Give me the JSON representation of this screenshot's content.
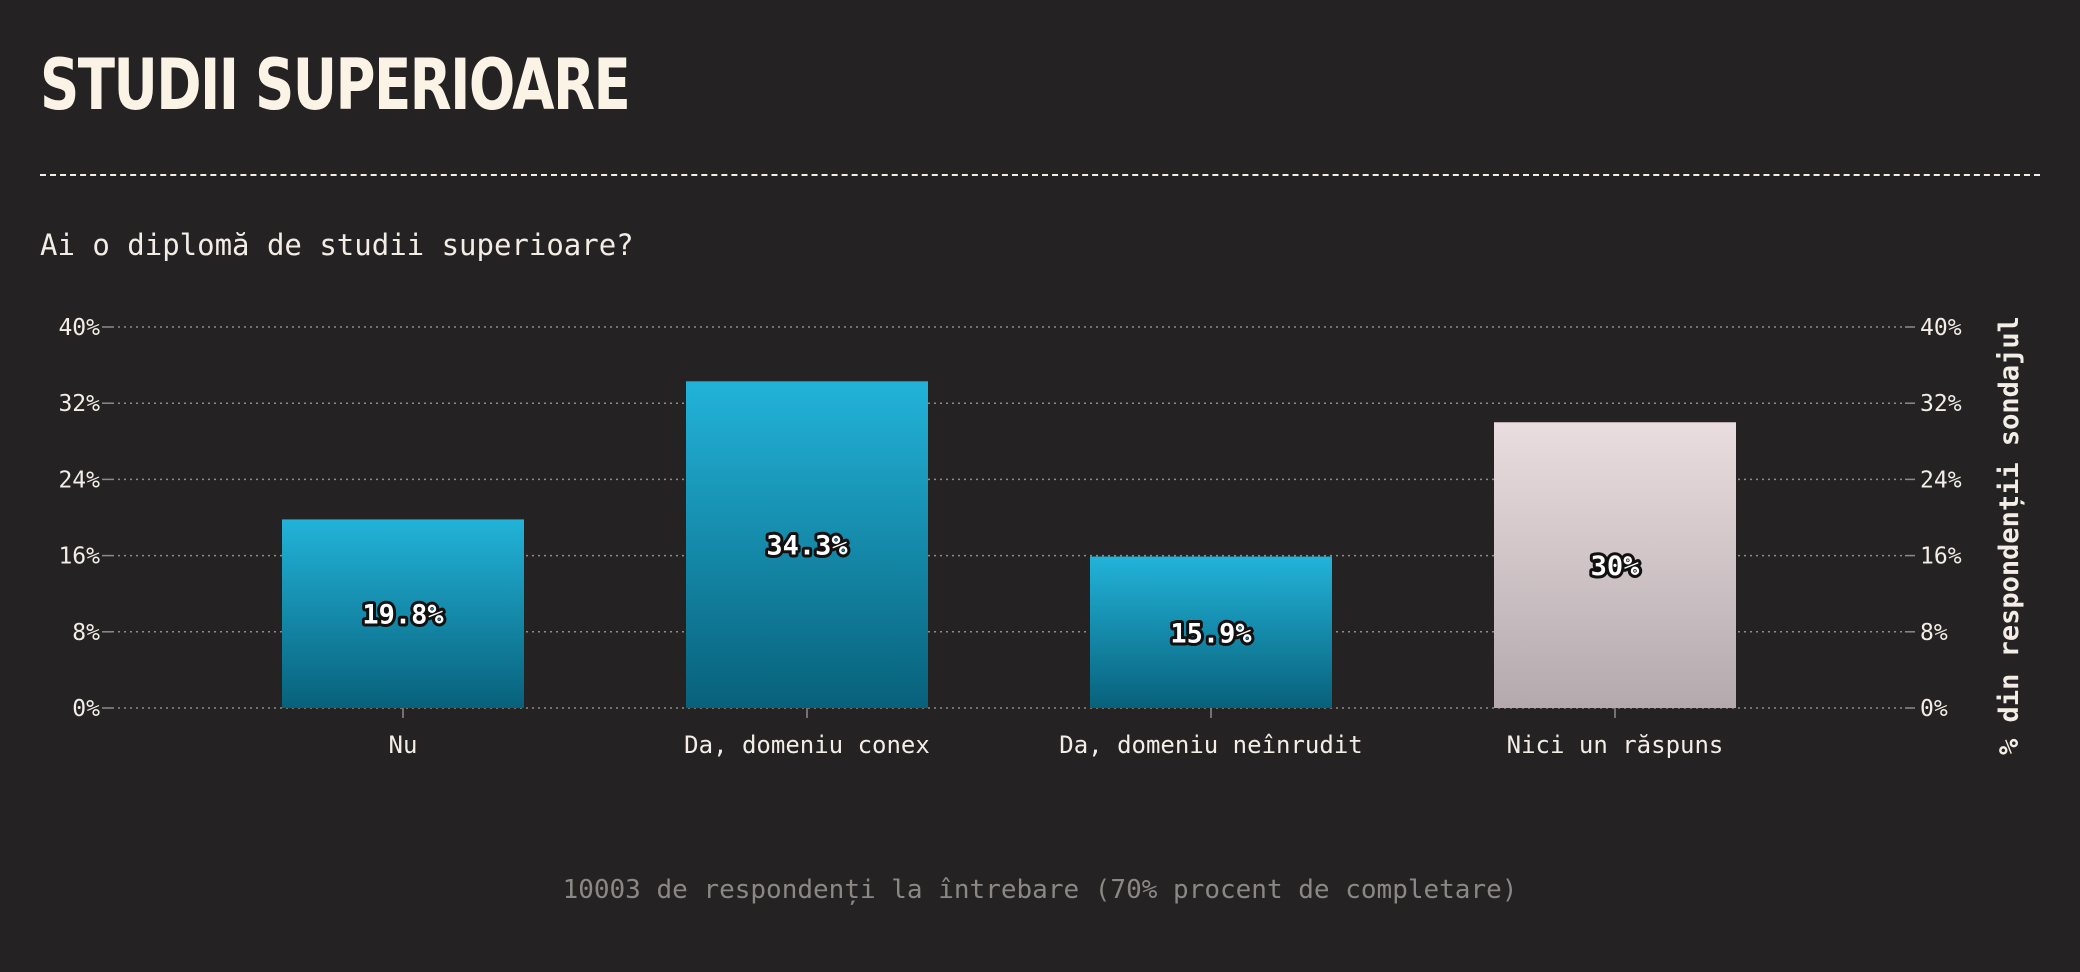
{
  "header": {
    "title": "STUDII SUPERIOARE"
  },
  "question": "Ai o diplomă de studii superioare?",
  "footer": "10003 de respondenți la întrebare (70% procent de completare)",
  "colors": {
    "background": "#252223",
    "bar_primary_top": "#22b3d9",
    "bar_primary_bottom": "#08617b",
    "bar_other_top": "#eadde0",
    "bar_other_bottom": "#b4aaad",
    "text": "#f3ede6",
    "muted": "#8c8784"
  },
  "chart_data": {
    "type": "bar",
    "categories": [
      "Nu",
      "Da, domeniu conex",
      "Da, domeniu neînrudit",
      "Nici un răspuns"
    ],
    "values": [
      19.8,
      34.3,
      15.9,
      30
    ],
    "data_labels": [
      "19.8%",
      "34.3%",
      "15.9%",
      "30%"
    ],
    "bar_styles": [
      "primary",
      "primary",
      "primary",
      "other"
    ],
    "ylim": [
      0,
      40
    ],
    "yticks": [
      "0%",
      "8%",
      "16%",
      "24%",
      "32%",
      "40%"
    ],
    "ylabel_right": "% din respondenții sondajul",
    "grid": true,
    "unit": "%"
  }
}
